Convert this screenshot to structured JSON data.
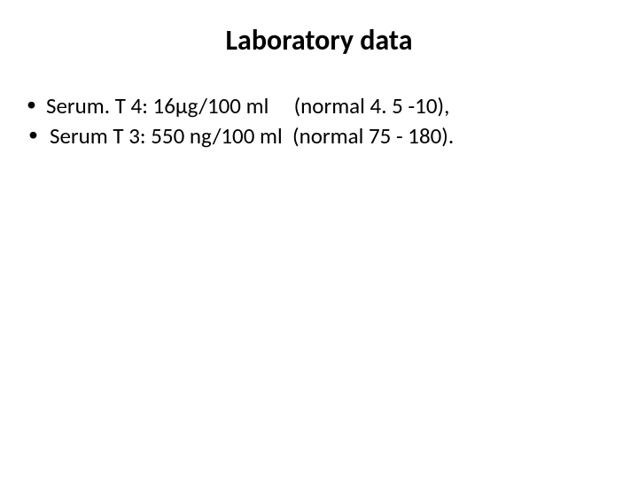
{
  "slide": {
    "title": "Laboratory data",
    "bullets": [
      {
        "text": "Serum. T 4: 16μg/100 ml     (normal 4. 5 -10),",
        "indent": false
      },
      {
        "text": " Serum T 3: 550 ng/100 ml  (normal 75 - 180).",
        "indent": true
      }
    ],
    "styling": {
      "background_color": "#ffffff",
      "text_color": "#000000",
      "title_fontsize": 32,
      "title_fontweight": "bold",
      "body_fontsize": 25,
      "font_family": "Calibri, Arial, sans-serif"
    }
  }
}
